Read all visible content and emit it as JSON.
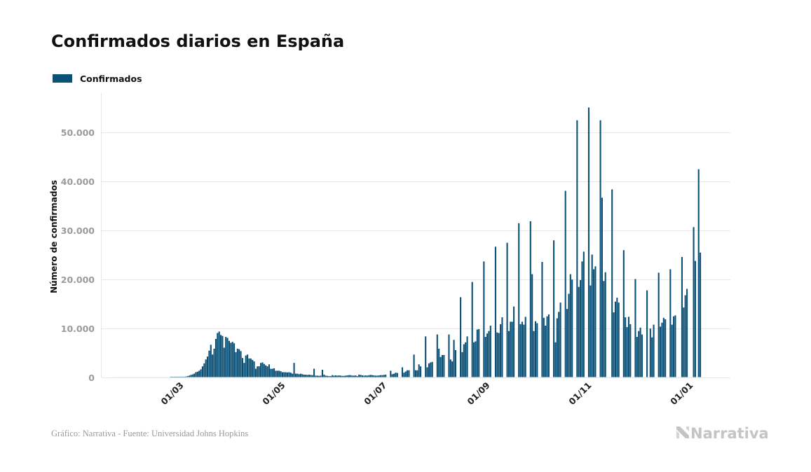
{
  "chart_data": {
    "type": "bar",
    "title": "Confirmados diarios en España",
    "ylabel": "Número de confirmados",
    "xlabel": "",
    "ylim": [
      0,
      57000
    ],
    "grid": "horizontal",
    "legend_placement": "top-left",
    "series": [
      {
        "name": "Confirmados",
        "color": "#0b5177"
      }
    ],
    "yticks": [
      {
        "value": 0,
        "label": "0"
      },
      {
        "value": 10000,
        "label": "10.000"
      },
      {
        "value": 20000,
        "label": "20.000"
      },
      {
        "value": 30000,
        "label": "30.000"
      },
      {
        "value": 40000,
        "label": "40.000"
      },
      {
        "value": 50000,
        "label": "50.000"
      }
    ],
    "xticks": [
      {
        "date": "2020-03-01",
        "label": "01/03"
      },
      {
        "date": "2020-05-01",
        "label": "01/05"
      },
      {
        "date": "2020-07-01",
        "label": "01/07"
      },
      {
        "date": "2020-09-01",
        "label": "01/09"
      },
      {
        "date": "2020-11-01",
        "label": "01/11"
      },
      {
        "date": "2021-01-01",
        "label": "01/01"
      }
    ],
    "daily_values_by_month": {
      "2020-01": [
        null,
        null,
        null,
        null,
        null,
        null,
        null,
        null,
        null,
        null,
        null,
        null,
        null,
        null,
        null,
        null,
        null,
        null,
        null,
        null,
        null,
        0,
        0,
        0,
        0,
        0,
        0,
        0,
        0,
        0,
        0
      ],
      "2020-02": [
        0,
        0,
        0,
        0,
        0,
        0,
        0,
        0,
        0,
        0,
        0,
        0,
        0,
        0,
        0,
        0,
        0,
        0,
        0,
        0,
        0,
        0,
        0,
        0,
        4,
        3,
        8,
        17,
        26
      ],
      "2020-03": [
        39,
        52,
        70,
        90,
        120,
        200,
        300,
        450,
        560,
        700,
        1000,
        1100,
        1300,
        1600,
        2200,
        2800,
        3600,
        4200,
        5400,
        6600,
        4600,
        5800,
        7800,
        9000,
        9300,
        8600,
        8400,
        6000,
        8200,
        8000,
        7400
      ],
      "2020-04": [
        7000,
        7200,
        6900,
        5100,
        5800,
        5700,
        5300,
        3900,
        2900,
        4400,
        4600,
        3800,
        3800,
        3500,
        3200,
        1700,
        2200,
        2200,
        2900,
        3000,
        2700,
        2400,
        2200,
        2600,
        1700,
        1700,
        1800,
        1300,
        1300,
        1300
      ],
      "2020-05": [
        1200,
        1000,
        1000,
        1000,
        950,
        1000,
        900,
        700,
        2900,
        700,
        700,
        600,
        700,
        600,
        500,
        500,
        450,
        500,
        450,
        400,
        1700,
        300,
        300,
        250,
        300,
        1500,
        500,
        300,
        250,
        200,
        200
      ],
      "2020-06": [
        400,
        300,
        350,
        300,
        350,
        300,
        250,
        250,
        300,
        350,
        400,
        400,
        300,
        300,
        350,
        200,
        500,
        450,
        350,
        300,
        350,
        300,
        400,
        450,
        400,
        350,
        300,
        300,
        350,
        400
      ],
      "2020-07": [
        400,
        450,
        500,
        0,
        0,
        1300,
        600,
        700,
        900,
        850,
        0,
        0,
        2000,
        900,
        1150,
        1400,
        1400,
        0,
        0,
        4600,
        1400,
        1400,
        2600,
        2200,
        0,
        0,
        8300,
        2000,
        2800,
        3000,
        3100
      ],
      "2020-08": [
        0,
        0,
        8700,
        5800,
        4100,
        4500,
        4500,
        0,
        0,
        8700,
        3600,
        3200,
        7600,
        5500,
        0,
        0,
        16300,
        5100,
        6700,
        7100,
        8300,
        0,
        0,
        19400,
        7100,
        7300,
        9700,
        9800,
        0,
        0,
        23600
      ],
      "2020-09": [
        8200,
        8900,
        9400,
        10500,
        0,
        0,
        26600,
        9100,
        9000,
        10800,
        12200,
        0,
        0,
        27400,
        9400,
        11300,
        11300,
        14400,
        0,
        0,
        31400,
        10800,
        11300,
        10700,
        12300,
        0,
        0,
        31800,
        21000,
        9400
      ],
      "2020-10": [
        11400,
        11000,
        0,
        0,
        23500,
        12100,
        10500,
        12400,
        12800,
        0,
        0,
        27900,
        7100,
        12000,
        13300,
        15200,
        0,
        0,
        38000,
        13900,
        17000,
        21000,
        19900,
        0,
        0,
        52400,
        18400,
        19800,
        23600,
        25600,
        0
      ],
      "2020-11": [
        0,
        55000,
        18700,
        25000,
        22000,
        22600,
        0,
        0,
        52400,
        36600,
        19600,
        21400,
        0,
        0,
        0,
        38300,
        13200,
        15400,
        16200,
        15200,
        0,
        0,
        25900,
        12200,
        10200,
        12300,
        10800,
        0,
        0,
        20000
      ],
      "2020-12": [
        8200,
        9400,
        10100,
        8700,
        0,
        0,
        17700,
        0,
        9900,
        8100,
        10700,
        0,
        0,
        21300,
        10300,
        11100,
        12100,
        11800,
        0,
        0,
        22000,
        10700,
        12400,
        12600,
        0,
        0,
        0,
        24500,
        14200,
        16700,
        18000
      ],
      "2021-01": [
        0,
        0,
        0,
        30600,
        23700,
        0,
        42400,
        25400
      ]
    }
  },
  "footer": {
    "source": "Gráfico: Narrativa - Fuente: Universidad Johns Hopkins",
    "logo_text": "Narrativa"
  }
}
